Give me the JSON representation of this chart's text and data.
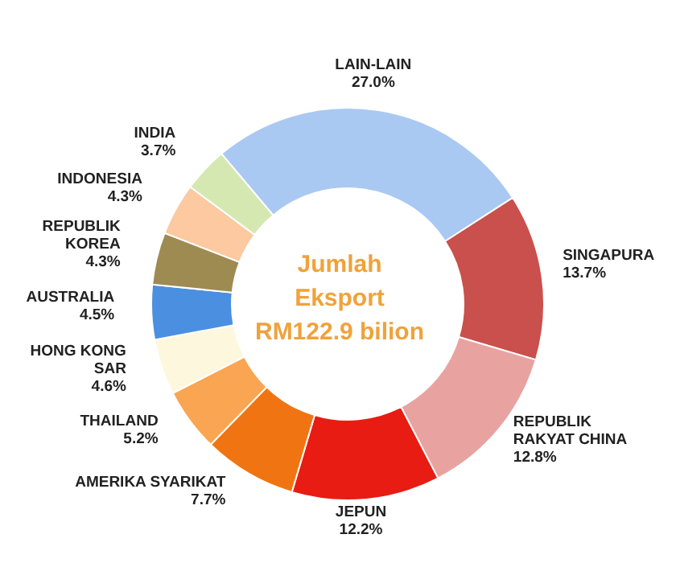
{
  "chart_data": {
    "type": "donut",
    "title": "Jumlah\nEksport\nRM122.9 bilion",
    "categories": [
      "LAIN-LAIN",
      "SINGAPURA",
      "REPUBLIK\nRAKYAT CHINA",
      "JEPUN",
      "AMERIKA SYARIKAT",
      "THAILAND",
      "HONG KONG\nSAR",
      "AUSTRALIA",
      "REPUBLIK\nKOREA",
      "INDONESIA",
      "INDIA"
    ],
    "values": [
      27.0,
      13.7,
      12.8,
      12.2,
      7.7,
      5.2,
      4.6,
      4.5,
      4.3,
      4.3,
      3.7
    ],
    "colors": [
      "#a9c9f2",
      "#c9504c",
      "#e8a3a1",
      "#e81c12",
      "#f07512",
      "#f9a552",
      "#fdf7dd",
      "#4b8fe0",
      "#9d8b52",
      "#fcc9a0",
      "#d5e8b2"
    ],
    "value_labels": [
      "27.0%",
      "13.7%",
      "12.8%",
      "12.2%",
      "7.7%",
      "5.2%",
      "4.6%",
      "4.5%",
      "4.3%",
      "4.3%",
      "3.7%"
    ],
    "legend": false
  }
}
